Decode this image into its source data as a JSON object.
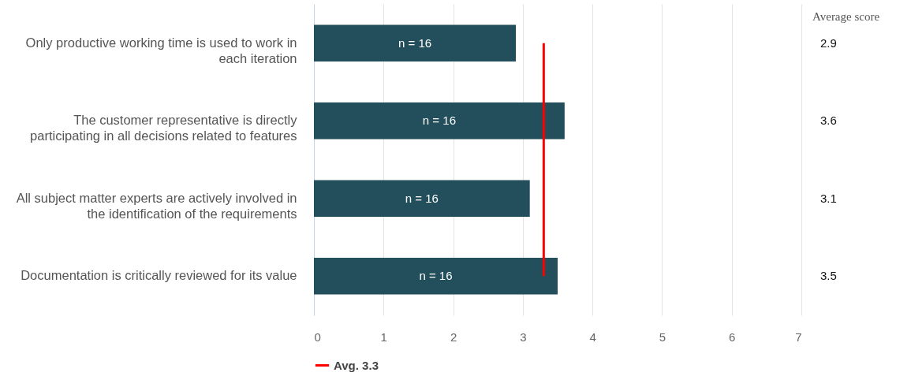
{
  "chart_data": {
    "type": "bar",
    "orientation": "horizontal",
    "categories": [
      "Only productive working time is used to work in each iteration",
      "The customer representative is directly participating in all decisions related to features",
      "All subject matter experts are actively involved in the identification of the requirements",
      "Documentation is critically reviewed for its value"
    ],
    "values": [
      2.9,
      3.6,
      3.1,
      3.5
    ],
    "color": "#234e5c",
    "data_labels": true,
    "xlim": [
      0,
      7
    ],
    "xticks": [
      0,
      1,
      2,
      3,
      4,
      5,
      6,
      7
    ],
    "grid": "x",
    "legend": "bottom",
    "ref_lines": [
      {
        "axis": "x",
        "value": 3.3,
        "label": "Avg. 3.3",
        "color": "#ff0000"
      }
    ],
    "annotations": [
      "Average score",
      "n = 16",
      "n = 16",
      "n = 16",
      "n = 16"
    ]
  }
}
